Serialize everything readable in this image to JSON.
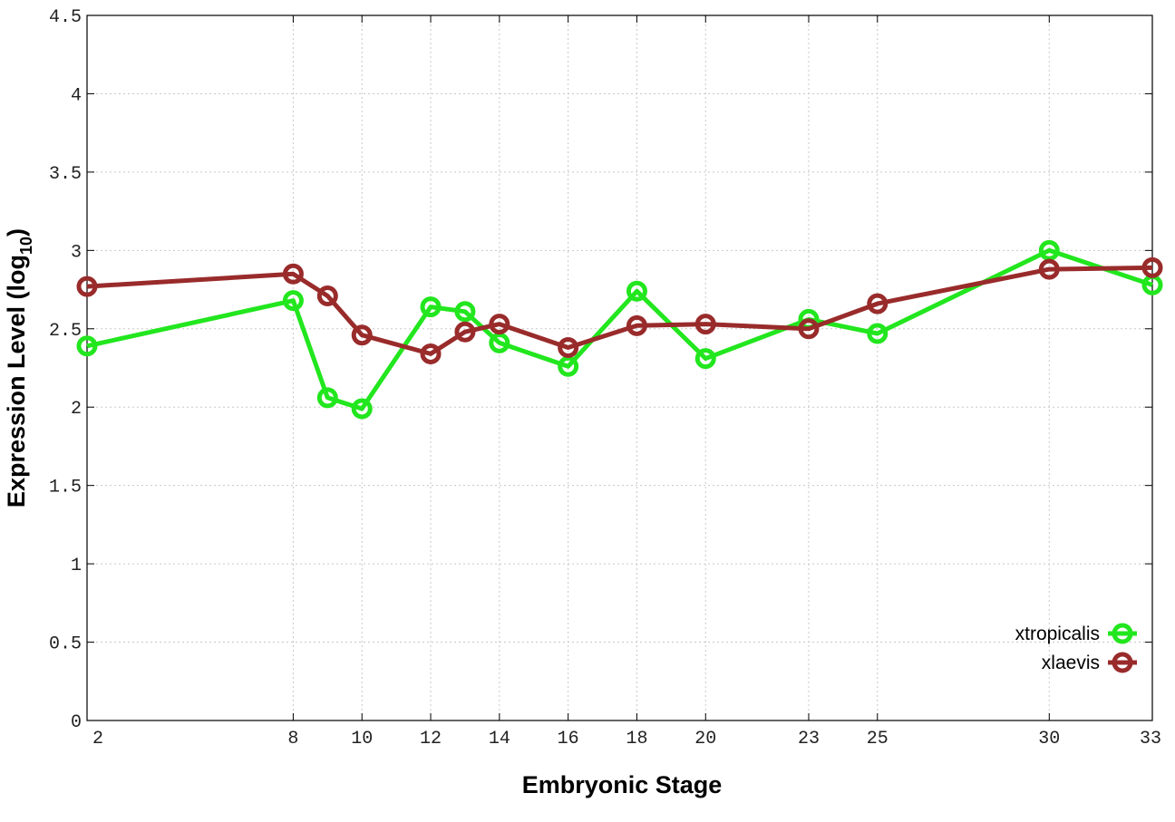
{
  "chart_data": {
    "type": "line",
    "title": "",
    "xlabel": "Embryonic Stage",
    "ylabel": "Expression Level (log",
    "ylabel_sub": "10",
    "ylabel_close": ")",
    "x": [
      2,
      8,
      9,
      10,
      12,
      13,
      14,
      16,
      18,
      20,
      23,
      25,
      30,
      33
    ],
    "xticks": [
      2,
      8,
      10,
      12,
      14,
      16,
      18,
      20,
      23,
      25,
      30,
      33
    ],
    "xlim": [
      2,
      33
    ],
    "ylim": [
      0,
      4.5
    ],
    "yticks": [
      "0",
      "0.5",
      "1",
      "1.5",
      "2",
      "2.5",
      "3",
      "3.5",
      "4",
      "4.5"
    ],
    "grid": true,
    "legend_position": "bottom-right",
    "series": [
      {
        "name": "xtropicalis",
        "color": "#22e61e",
        "values": [
          2.39,
          2.68,
          2.06,
          1.99,
          2.64,
          2.61,
          2.41,
          2.26,
          2.74,
          2.31,
          2.56,
          2.47,
          3.0,
          2.78
        ]
      },
      {
        "name": "xlaevis",
        "color": "#992b2b",
        "values": [
          2.77,
          2.85,
          2.71,
          2.46,
          2.34,
          2.48,
          2.53,
          2.38,
          2.52,
          2.53,
          2.5,
          2.66,
          2.88,
          2.89
        ]
      }
    ]
  }
}
